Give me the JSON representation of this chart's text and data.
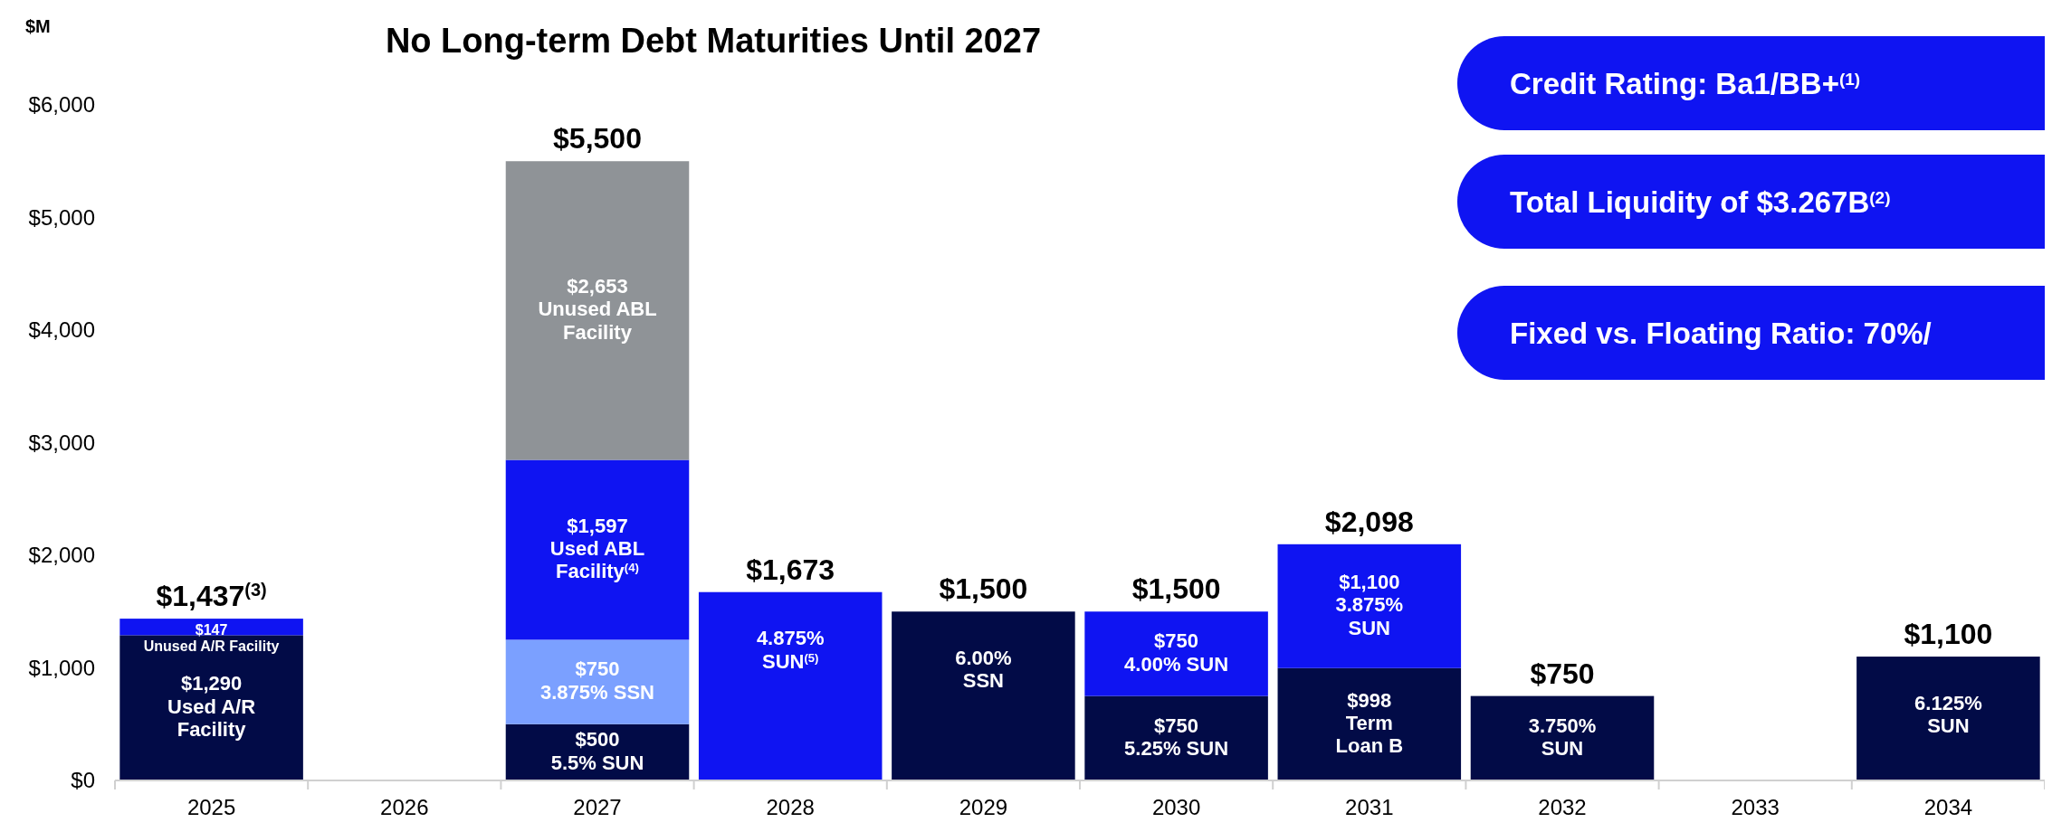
{
  "chart_data": {
    "type": "bar",
    "stacked": true,
    "title": "No Long-term Debt Maturities Until 2027",
    "ylabel": "$M",
    "categories": [
      "2025",
      "2026",
      "2027",
      "2028",
      "2029",
      "2030",
      "2031",
      "2032",
      "2033",
      "2034"
    ],
    "ylim": [
      0,
      6000
    ],
    "yticks": [
      {
        "value": 0,
        "label": "$0"
      },
      {
        "value": 1000,
        "label": "$1,000"
      },
      {
        "value": 2000,
        "label": "$2,000"
      },
      {
        "value": 3000,
        "label": "$3,000"
      },
      {
        "value": 4000,
        "label": "$4,000"
      },
      {
        "value": 5000,
        "label": "$5,000"
      },
      {
        "value": 6000,
        "label": "$6,000"
      }
    ],
    "series": [
      {
        "color": "#020b47",
        "values": [
          1290,
          null,
          500,
          null,
          1500,
          750,
          998,
          750,
          null,
          1100
        ],
        "value_labels": [
          "$1,290\nUsed A/R\nFacility",
          null,
          "$500\n5.5% SUN",
          null,
          null,
          "$750\n5.25% SUN",
          "$998\nTerm\nLoan B",
          null,
          null,
          null
        ]
      },
      {
        "color": "#7ba0ff",
        "values": [
          null,
          null,
          750,
          null,
          null,
          null,
          null,
          null,
          null,
          null
        ],
        "value_labels": [
          null,
          null,
          "$750\n3.875% SSN",
          null,
          null,
          null,
          null,
          null,
          null,
          null
        ]
      },
      {
        "color": "#0f14f2",
        "values": [
          147,
          null,
          1597,
          1673,
          null,
          750,
          1100,
          null,
          null,
          null
        ],
        "value_labels": [
          "$147\nUnused A/R Facility",
          null,
          "$1,597\nUsed ABL\nFacility$^{(4)}$",
          null,
          null,
          "$750\n4.00% SUN",
          "$1,100\n3.875%\nSUN",
          null,
          null,
          null
        ]
      },
      {
        "color": "#8f9397",
        "values": [
          null,
          null,
          2653,
          null,
          null,
          null,
          null,
          null,
          null,
          null
        ],
        "value_labels": [
          null,
          null,
          "$2,653\nUnused ABL\nFacility",
          null,
          null,
          null,
          null,
          null,
          null,
          null
        ]
      }
    ],
    "totals": [
      "$1,437$^{(3)}$",
      null,
      "$5,500",
      "$1,673",
      "$1,500",
      "$1,500",
      "$2,098",
      "$750",
      null,
      "$1,100"
    ],
    "annotations": [
      "Credit Rating: Ba1/BB+$^{(1)}$",
      "Total Liquidity of  $3.267B$^{(2)}$",
      "Fixed vs. Floating Ratio:  70%/",
      {
        "text": "4.875%\nSUN$^{(5)}$",
        "x": "2028",
        "y": 1673
      },
      {
        "text": "6.00%\nSSN",
        "x": "2029",
        "y": 1500
      },
      {
        "text": "3.750%\nSUN",
        "x": "2032",
        "y": 750
      },
      {
        "text": "6.125%\nSUN",
        "x": "2034",
        "y": 1100
      }
    ],
    "grid": false
  }
}
